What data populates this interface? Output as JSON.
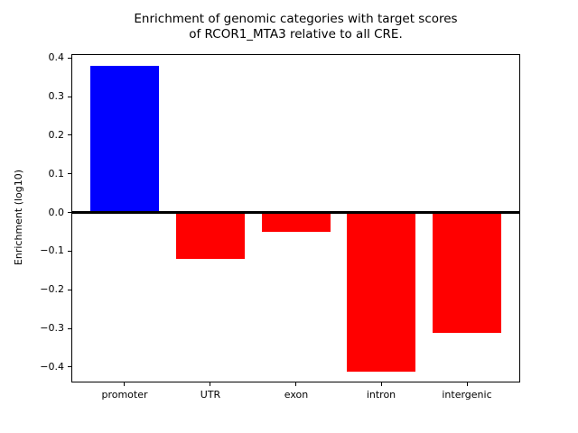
{
  "chart_data": {
    "type": "bar",
    "title": "Enrichment of genomic categories with target scores\nof RCOR1_MTA3 relative to all CRE.",
    "xlabel": "",
    "ylabel": "Enrichment (log10)",
    "categories": [
      "promoter",
      "UTR",
      "exon",
      "intron",
      "intergenic"
    ],
    "values": [
      0.38,
      -0.12,
      -0.05,
      -0.41,
      -0.31
    ],
    "yticks": [
      0.4,
      0.3,
      0.2,
      0.1,
      0.0,
      -0.1,
      -0.2,
      -0.3,
      -0.4
    ],
    "ylim": [
      -0.44,
      0.41
    ],
    "xlim": [
      -0.62,
      4.62
    ],
    "bar_width": 0.8,
    "grid": false,
    "legend": null,
    "zero_line": true,
    "colors": {
      "positive": "#0000ff",
      "negative": "#ff0000",
      "zero_line": "#000000",
      "spine": "#000000",
      "tick": "#000000",
      "text": "#000000",
      "background": "#ffffff"
    }
  }
}
